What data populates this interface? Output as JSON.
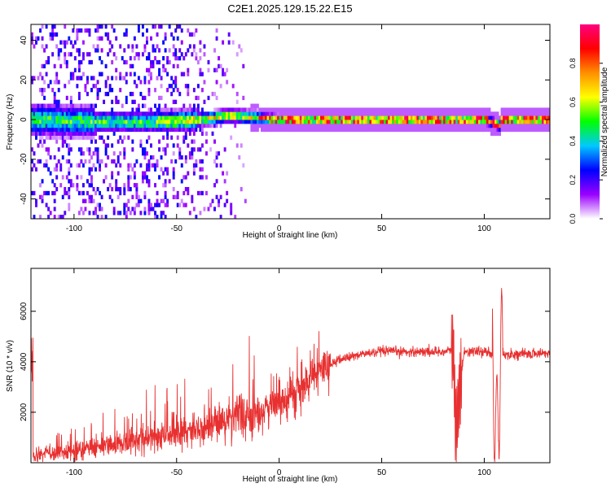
{
  "figure_title": "C2E1.2025.129.15.22.E15",
  "chart_data": [
    {
      "type": "heatmap",
      "title": "C2E1.2025.129.15.22.E15",
      "xlabel": "Height of straight line (km)",
      "ylabel": "Frequency (Hz)",
      "xlim": [
        -121,
        132
      ],
      "ylim": [
        -50,
        48
      ],
      "xticks": [
        -100,
        -50,
        0,
        50,
        100
      ],
      "yticks": [
        40,
        20,
        0,
        -20,
        -40
      ],
      "colorbar": {
        "label": "Normalized spectral amplitude",
        "range": [
          0,
          1
        ],
        "ticks": [
          "0.0",
          "0.2",
          "0.4",
          "0.6",
          "0.8"
        ],
        "colors": [
          "#ffffff",
          "#9a00ff",
          "#0000ff",
          "#00c8ff",
          "#00ff00",
          "#ffff00",
          "#ff9000",
          "#ff0000",
          "#ff0080"
        ]
      },
      "ridge": {
        "description": "narrowband line near 0 Hz, broadening to noise at low heights",
        "center_freq_hz": [
          {
            "x": -120,
            "f": 0
          },
          {
            "x": -90,
            "f": -1
          },
          {
            "x": -60,
            "f": -1
          },
          {
            "x": -40,
            "f": 0
          },
          {
            "x": -25,
            "f": 2
          },
          {
            "x": -10,
            "f": 1
          },
          {
            "x": 0,
            "f": 0
          },
          {
            "x": 50,
            "f": 0
          },
          {
            "x": 100,
            "f": 0
          },
          {
            "x": 107,
            "f": -3
          },
          {
            "x": 108,
            "f": 0
          },
          {
            "x": 132,
            "f": 0
          }
        ]
      }
    },
    {
      "type": "line",
      "title": "",
      "xlabel": "Height of straight line (km)",
      "ylabel": "SNR (10 * v/v)",
      "xlim": [
        -121,
        132
      ],
      "ylim": [
        0,
        7700
      ],
      "xticks": [
        -100,
        -50,
        0,
        50,
        100
      ],
      "yticks": [
        2000,
        4000,
        6000
      ],
      "series": [
        {
          "name": "SNR",
          "color": "#e83030",
          "x": [
            -120,
            -110,
            -100,
            -90,
            -80,
            -70,
            -60,
            -50,
            -40,
            -30,
            -20,
            -10,
            0,
            10,
            15,
            20,
            25,
            30,
            40,
            50,
            60,
            70,
            80,
            85,
            86,
            90,
            95,
            100,
            104,
            106,
            108,
            110,
            120,
            132
          ],
          "y": [
            300,
            350,
            450,
            600,
            750,
            850,
            1000,
            1200,
            1350,
            1600,
            1800,
            2000,
            2400,
            2800,
            3300,
            3600,
            3900,
            4100,
            4300,
            4400,
            4400,
            4400,
            4400,
            4450,
            1200,
            4400,
            4400,
            4400,
            4300,
            600,
            4300,
            4300,
            4300,
            4350
          ]
        }
      ]
    }
  ]
}
